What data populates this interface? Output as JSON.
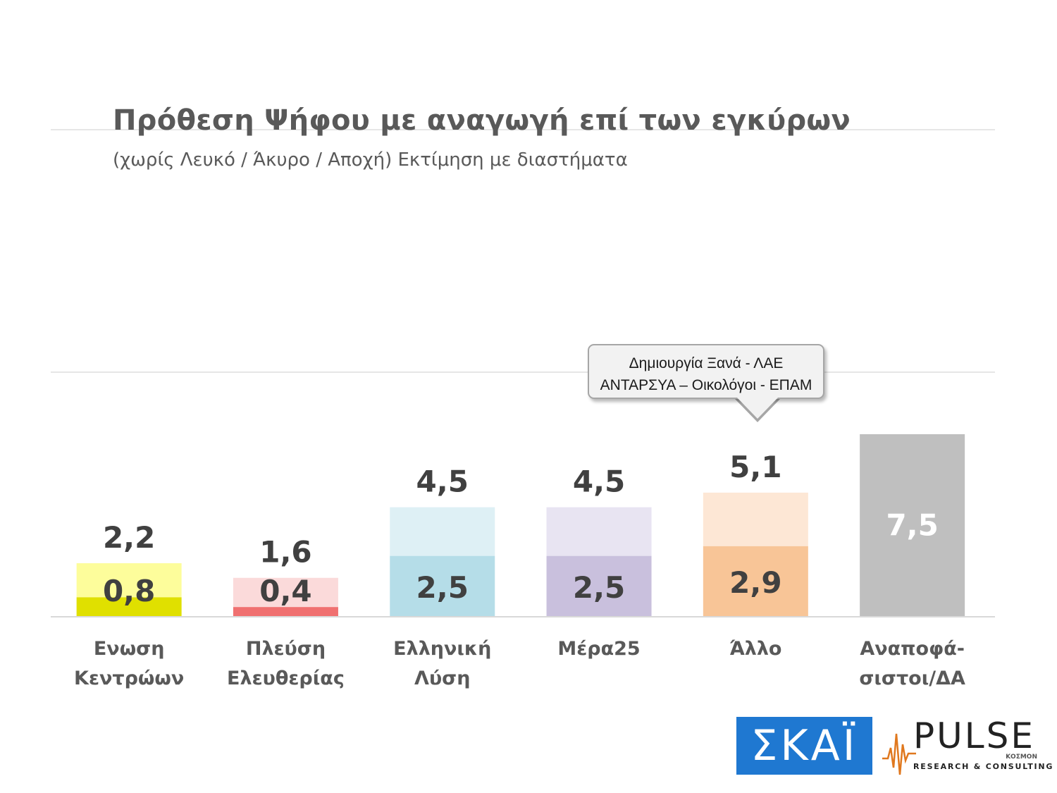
{
  "header": {
    "title": "Πρόθεση Ψήφου με αναγωγή επί των εγκύρων",
    "subtitle": "(χωρίς Λευκό / Άκυρο / Αποχή)   Εκτίμηση με διαστήματα"
  },
  "callout": {
    "line1": "Δημιουργία Ξανά -  ΛΑΕ",
    "line2": "ΑΝΤΑΡΣΥΑ – Οικολόγοι - ΕΠΑΜ"
  },
  "logos": {
    "skai": "ΣΚΑΪ",
    "pulse": "PULSE",
    "pulse_sub": "RESEARCH & CONSULTING",
    "pulse_small": "ΚΟΣΜΟΝ"
  },
  "chart_data": {
    "type": "bar",
    "categories": [
      [
        "Ενωση",
        "Κεντρώων"
      ],
      [
        "Πλεύση",
        "Ελευθερίας"
      ],
      [
        "Ελληνική",
        "Λύση"
      ],
      [
        "Μέρα25"
      ],
      [
        "Άλλο"
      ],
      [
        "Αναποφά-",
        "σιστοι/ΔΑ"
      ]
    ],
    "series": [
      {
        "values": [
          0.8,
          0.4,
          2.5,
          2.5,
          2.9,
          7.5
        ],
        "labels": [
          "0,8",
          "0,4",
          "2,5",
          "2,5",
          "2,9",
          "7,5"
        ]
      },
      {
        "values": [
          2.2,
          1.6,
          4.5,
          4.5,
          5.1,
          null
        ],
        "labels": [
          "2,2",
          "1,6",
          "4,5",
          "4,5",
          "5,1",
          ""
        ]
      }
    ],
    "colors": {
      "base": [
        "#e0e000",
        "#f07070",
        "#b5dde8",
        "#c9c0dd",
        "#f8c597",
        "#bfbfbf"
      ],
      "range": [
        "#fdfd9b",
        "#fbdada",
        "#def0f5",
        "#e8e4f2",
        "#fde7d5",
        "#bfbfbf"
      ]
    },
    "ylim": [
      0,
      7.5
    ],
    "grid": false,
    "legend": "none"
  }
}
